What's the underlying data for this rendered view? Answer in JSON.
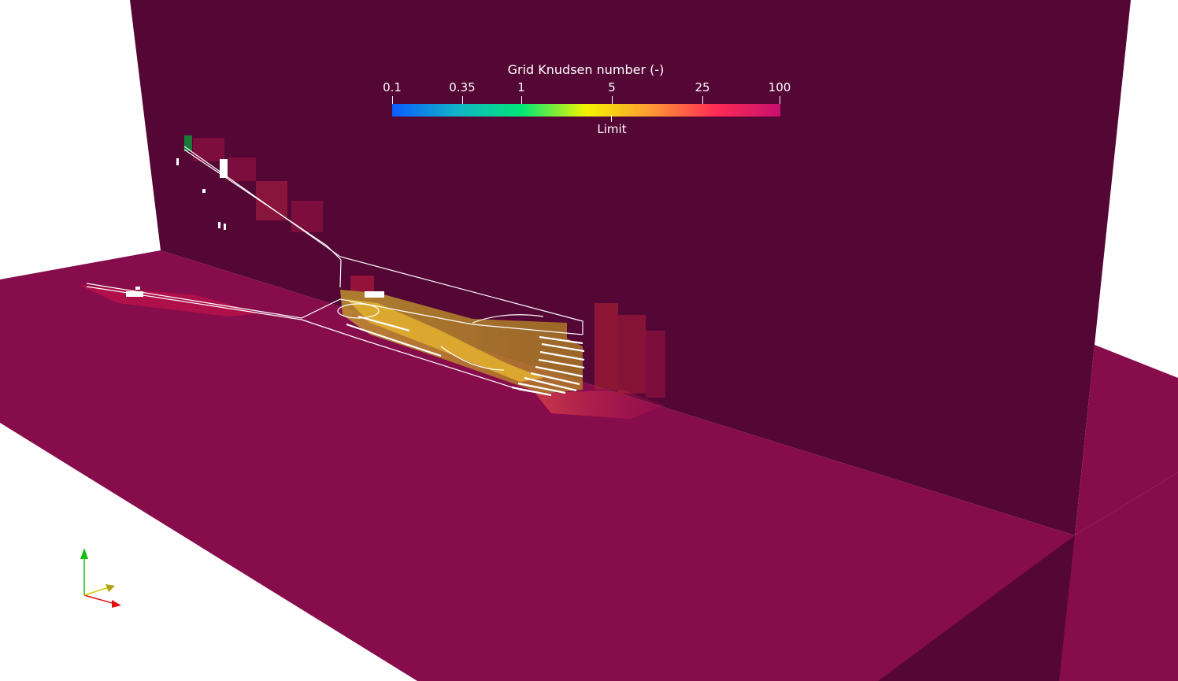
{
  "colorbar": {
    "title": "Grid Knudsen number (-)",
    "scale": "log",
    "range": [
      0.1,
      100
    ],
    "ticks": [
      "0.1",
      "0.35",
      "1",
      "5",
      "25",
      "100"
    ],
    "tick_values": [
      0.1,
      0.35,
      1,
      5,
      25,
      100
    ],
    "limit_label": "Limit",
    "limit_value": 5,
    "colors": [
      "#0a5cff",
      "#11b4c8",
      "#00e676",
      "#f4f400",
      "#ff9933",
      "#ff2a55",
      "#c8106e"
    ]
  },
  "scene": {
    "background": "#ffffff",
    "floor_color": "#870c4b",
    "wall_color": "#540634",
    "outline_color": "#ffffff",
    "highlight_color": "#d9a72a"
  },
  "orientation_axes": {
    "x_color": "#e01010",
    "y_color": "#12c012",
    "z_color": "#d4c400"
  }
}
